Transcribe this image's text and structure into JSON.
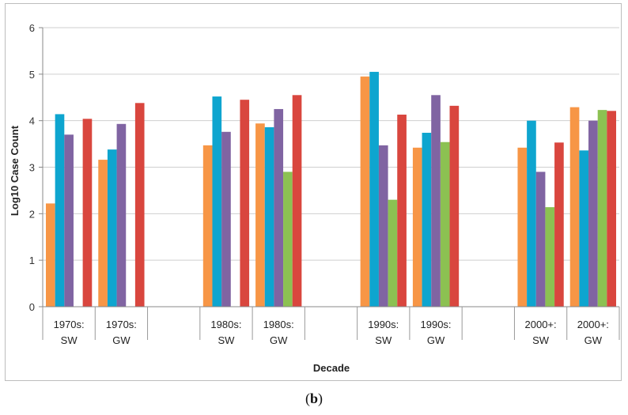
{
  "caption": {
    "open": "(",
    "letter": "b",
    "close": ")"
  },
  "chart_data": {
    "type": "bar",
    "xlabel": "Decade",
    "ylabel": "Log10 Case Count",
    "ylim": [
      0,
      6
    ],
    "yticks": [
      "0",
      "1",
      "2",
      "3",
      "4",
      "5",
      "6"
    ],
    "grid": true,
    "legend": "none",
    "categories": [
      {
        "line1": "1970s:",
        "line2": "SW"
      },
      {
        "line1": "1970s:",
        "line2": "GW"
      },
      {
        "line1": "",
        "line2": ""
      },
      {
        "line1": "1980s:",
        "line2": "SW"
      },
      {
        "line1": "1980s:",
        "line2": "GW"
      },
      {
        "line1": "",
        "line2": ""
      },
      {
        "line1": "1990s:",
        "line2": "SW"
      },
      {
        "line1": "1990s:",
        "line2": "GW"
      },
      {
        "line1": "",
        "line2": ""
      },
      {
        "line1": "2000+:",
        "line2": "SW"
      },
      {
        "line1": "2000+:",
        "line2": "GW"
      }
    ],
    "series": [
      {
        "color": "#f79646",
        "values": [
          2.22,
          3.16,
          null,
          3.47,
          3.94,
          null,
          4.95,
          3.42,
          null,
          3.42,
          4.29
        ]
      },
      {
        "color": "#0ea5cf",
        "values": [
          4.14,
          3.38,
          null,
          4.52,
          3.86,
          null,
          5.05,
          3.74,
          null,
          4.0,
          3.36
        ]
      },
      {
        "color": "#8064a2",
        "values": [
          3.7,
          3.93,
          null,
          3.76,
          4.25,
          null,
          3.47,
          4.55,
          null,
          2.9,
          4.0
        ]
      },
      {
        "color": "#8cc152",
        "values": [
          null,
          null,
          null,
          null,
          2.9,
          null,
          2.3,
          3.54,
          null,
          2.14,
          4.23
        ]
      },
      {
        "color": "#d9463e",
        "values": [
          4.04,
          4.38,
          null,
          4.45,
          4.55,
          null,
          4.13,
          4.32,
          null,
          3.53,
          4.21
        ]
      }
    ]
  }
}
